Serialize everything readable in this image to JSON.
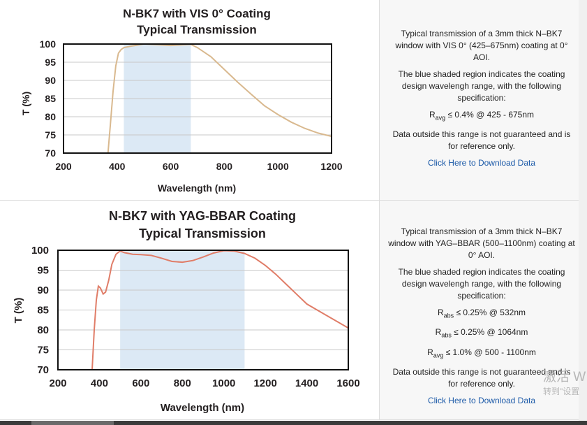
{
  "chart_data": [
    {
      "type": "line",
      "title": "N-BK7 with VIS 0° Coating",
      "subtitle": "Typical Transmission",
      "xlabel": "Wavelength (nm)",
      "ylabel": "T (%)",
      "xlim": [
        200,
        1200
      ],
      "ylim": [
        70,
        100
      ],
      "xticks": [
        "200",
        "400",
        "600",
        "800",
        "1000",
        "1200"
      ],
      "yticks": [
        "100",
        "95",
        "90",
        "85",
        "80",
        "75",
        "70"
      ],
      "xtick_values": [
        200,
        400,
        600,
        800,
        1000,
        1200
      ],
      "ytick_values": [
        100,
        95,
        90,
        85,
        80,
        75,
        70
      ],
      "shaded_range": [
        425,
        675
      ],
      "shade_color": "#dce9f5",
      "line_color": "#d9b98f",
      "series": [
        {
          "name": "Transmission",
          "x": [
            366,
            375,
            385,
            395,
            405,
            415,
            425,
            450,
            475,
            500,
            550,
            600,
            650,
            675,
            700,
            750,
            800,
            850,
            900,
            950,
            1000,
            1050,
            1100,
            1150,
            1200
          ],
          "y": [
            70,
            78,
            87,
            94,
            97.5,
            98.5,
            99,
            99.4,
            99.7,
            100,
            99.8,
            99.6,
            99.8,
            99.9,
            99,
            96.5,
            93,
            89.5,
            86.2,
            83,
            80.6,
            78.5,
            76.8,
            75.5,
            74.6
          ]
        }
      ]
    },
    {
      "type": "line",
      "title": "N-BK7 with YAG-BBAR Coating",
      "subtitle": "Typical Transmission",
      "xlabel": "Wavelength (nm)",
      "ylabel": "T (%)",
      "xlim": [
        200,
        1600
      ],
      "ylim": [
        70,
        100
      ],
      "xticks": [
        "200",
        "400",
        "600",
        "800",
        "1000",
        "1200",
        "1400",
        "1600"
      ],
      "yticks": [
        "100",
        "95",
        "90",
        "85",
        "80",
        "75",
        "70"
      ],
      "xtick_values": [
        200,
        400,
        600,
        800,
        1000,
        1200,
        1400,
        1600
      ],
      "ytick_values": [
        100,
        95,
        90,
        85,
        80,
        75,
        70
      ],
      "shaded_range": [
        500,
        1100
      ],
      "shade_color": "#dce9f5",
      "line_color": "#e07d68",
      "series": [
        {
          "name": "Transmission",
          "x": [
            365,
            375,
            385,
            395,
            405,
            418,
            430,
            445,
            460,
            480,
            500,
            520,
            560,
            600,
            650,
            700,
            750,
            800,
            850,
            900,
            950,
            1000,
            1050,
            1100,
            1150,
            1200,
            1250,
            1300,
            1350,
            1400,
            1450,
            1500,
            1550,
            1600
          ],
          "y": [
            70,
            80,
            87.5,
            91,
            90.5,
            89,
            89.5,
            92.5,
            96.5,
            99,
            99.8,
            99.4,
            99,
            98.9,
            98.7,
            98,
            97.2,
            97,
            97.4,
            98.3,
            99.3,
            99.9,
            99.8,
            99.2,
            98,
            96.2,
            94,
            91.5,
            89,
            86.5,
            85,
            83.5,
            82,
            80.5
          ]
        }
      ]
    }
  ],
  "panels": [
    {
      "desc_intro": "Typical transmission of a 3mm thick N–BK7 window with VIS 0° (425–675nm) coating at 0° AOI.",
      "desc_shading": "The blue shaded region indicates the coating design wavelengh range, with the following specification:",
      "specs": [
        {
          "symbol": "R",
          "sub": "avg",
          "text": " ≤ 0.4% @ 425 - 675nm"
        }
      ],
      "disclaimer": "Data outside this range is not guaranteed and is for reference only.",
      "link": "Click Here to Download Data"
    },
    {
      "desc_intro": "Typical transmission of a 3mm thick N–BK7 window with YAG–BBAR (500–1100nm) coating at 0° AOI.",
      "desc_shading": "The blue shaded region indicates the coating design wavelengh range, with the following specification:",
      "specs": [
        {
          "symbol": "R",
          "sub": "abs",
          "text": " ≤ 0.25% @ 532nm"
        },
        {
          "symbol": "R",
          "sub": "abs",
          "text": " ≤ 0.25% @ 1064nm"
        },
        {
          "symbol": "R",
          "sub": "avg",
          "text": " ≤ 1.0% @ 500 - 1100nm"
        }
      ],
      "disclaimer": "Data outside this range is not guaranteed and is for reference only.",
      "link": "Click Here to Download Data"
    }
  ],
  "watermark": {
    "line1": "激活 W",
    "line2": "转到\"设置"
  }
}
